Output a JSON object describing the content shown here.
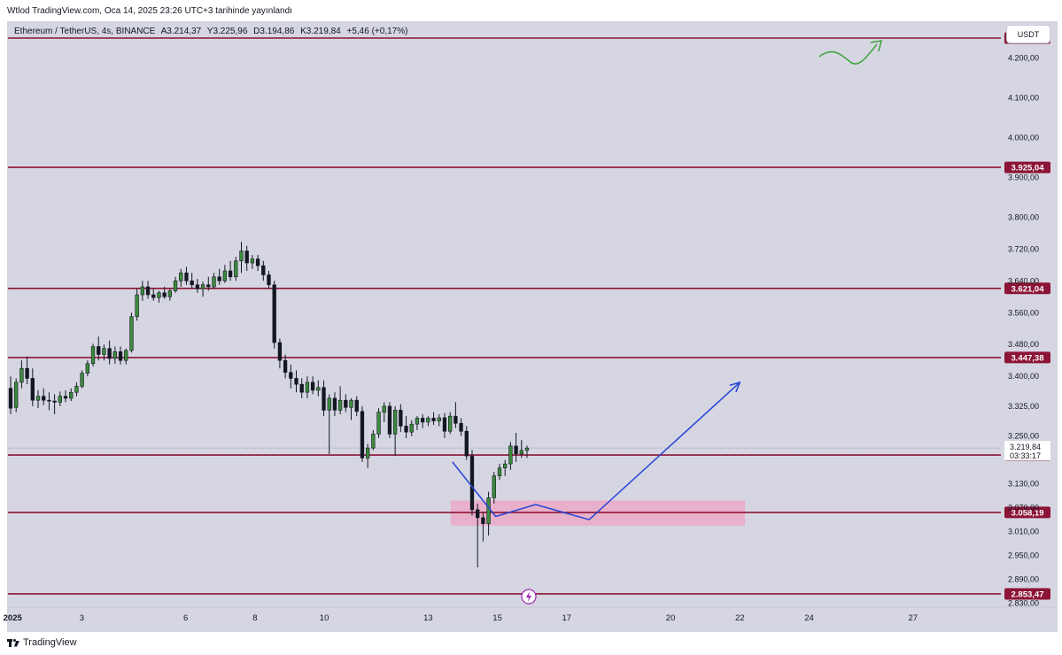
{
  "header": {
    "published": "Wtlod TradingView.com, Oca 14, 2025 23:26 UTC+3 tarihinde yayınlandı"
  },
  "legend": {
    "symbol": "Ethereum / TetherUS, 4s, BINANCE",
    "open": "A3.214,37",
    "high": "Y3.225,96",
    "low": "D3.194,86",
    "close": "K3.219,84",
    "change": "+5,46 (+0,17%)"
  },
  "currency_button": "USDT",
  "footer": {
    "brand": "TradingView"
  },
  "colors": {
    "background": "#d6d6e2",
    "level_line": "#8c1436",
    "level_badge": "#8c1436",
    "up_candle": "#3c8c3c",
    "down_candle": "#131722",
    "projection": "#2845d6",
    "zone": "#f0a0c0",
    "squiggle": "#3aa13a",
    "alert": "#9c27b0"
  },
  "icons": {
    "alert": "lightning-icon",
    "brand": "tradingview-logo-icon"
  },
  "chart_data": {
    "type": "candlestick",
    "title": "Ethereum / TetherUS, 4s, BINANCE",
    "x_tick_labels": [
      "2025",
      "3",
      "6",
      "8",
      "10",
      "13",
      "15",
      "17",
      "20",
      "22",
      "24",
      "27"
    ],
    "x_tick_days": [
      1,
      3,
      6,
      8,
      10,
      13,
      15,
      17,
      20,
      22,
      24,
      27
    ],
    "ylim": [
      2820,
      4290
    ],
    "y_tick_labels": [
      "4.200,00",
      "4.100,00",
      "4.000,00",
      "3.900,00",
      "3.800,00",
      "3.720,00",
      "3.640,00",
      "3.560,00",
      "3.480,00",
      "3.400,00",
      "3.325,00",
      "3.250,00",
      "3.130,00",
      "3.070,00",
      "3.010,00",
      "2.950,00",
      "2.890,00",
      "2.830,00"
    ],
    "y_ticks": [
      4200,
      4100,
      4000,
      3900,
      3800,
      3720,
      3640,
      3560,
      3480,
      3400,
      3325,
      3250,
      3130,
      3070,
      3010,
      2950,
      2890,
      2830
    ],
    "horizontal_levels": [
      {
        "value": 4249.96,
        "label": "4.249,96"
      },
      {
        "value": 3925.04,
        "label": "3.925,04"
      },
      {
        "value": 3621.04,
        "label": "3.621,04"
      },
      {
        "value": 3447.38,
        "label": "3.447,38"
      },
      {
        "value": 3202.28,
        "label": "3.202,28"
      },
      {
        "value": 3058.19,
        "label": "3.058,19"
      },
      {
        "value": 2853.47,
        "label": "2.853,47"
      }
    ],
    "last_price": {
      "value": 3219.84,
      "label": "3.219,84",
      "countdown": "03:33:17"
    },
    "zone": {
      "x_start": 13.65,
      "x_end": 22.15,
      "y_low": 3025,
      "y_high": 3088
    },
    "projection_path": [
      {
        "x": 13.7,
        "y": 3185
      },
      {
        "x": 14.95,
        "y": 3048
      },
      {
        "x": 16.1,
        "y": 3078
      },
      {
        "x": 17.65,
        "y": 3040
      },
      {
        "x": 22.0,
        "y": 3385
      }
    ],
    "candles": [
      {
        "o": 3370,
        "h": 3400,
        "l": 3305,
        "c": 3320
      },
      {
        "o": 3322,
        "h": 3395,
        "l": 3310,
        "c": 3385
      },
      {
        "o": 3385,
        "h": 3440,
        "l": 3370,
        "c": 3420
      },
      {
        "o": 3420,
        "h": 3450,
        "l": 3380,
        "c": 3395
      },
      {
        "o": 3395,
        "h": 3420,
        "l": 3325,
        "c": 3340
      },
      {
        "o": 3340,
        "h": 3365,
        "l": 3320,
        "c": 3350
      },
      {
        "o": 3350,
        "h": 3370,
        "l": 3328,
        "c": 3340
      },
      {
        "o": 3340,
        "h": 3360,
        "l": 3315,
        "c": 3338
      },
      {
        "o": 3338,
        "h": 3355,
        "l": 3305,
        "c": 3335
      },
      {
        "o": 3335,
        "h": 3362,
        "l": 3325,
        "c": 3350
      },
      {
        "o": 3350,
        "h": 3365,
        "l": 3335,
        "c": 3345
      },
      {
        "o": 3345,
        "h": 3370,
        "l": 3338,
        "c": 3360
      },
      {
        "o": 3360,
        "h": 3385,
        "l": 3350,
        "c": 3375
      },
      {
        "o": 3375,
        "h": 3415,
        "l": 3370,
        "c": 3408
      },
      {
        "o": 3408,
        "h": 3440,
        "l": 3400,
        "c": 3432
      },
      {
        "o": 3432,
        "h": 3482,
        "l": 3425,
        "c": 3475
      },
      {
        "o": 3475,
        "h": 3500,
        "l": 3440,
        "c": 3455
      },
      {
        "o": 3455,
        "h": 3480,
        "l": 3440,
        "c": 3470
      },
      {
        "o": 3470,
        "h": 3490,
        "l": 3430,
        "c": 3445
      },
      {
        "o": 3445,
        "h": 3475,
        "l": 3432,
        "c": 3462
      },
      {
        "o": 3462,
        "h": 3475,
        "l": 3430,
        "c": 3440
      },
      {
        "o": 3440,
        "h": 3470,
        "l": 3430,
        "c": 3465
      },
      {
        "o": 3465,
        "h": 3560,
        "l": 3460,
        "c": 3550
      },
      {
        "o": 3550,
        "h": 3620,
        "l": 3540,
        "c": 3605
      },
      {
        "o": 3605,
        "h": 3640,
        "l": 3590,
        "c": 3625
      },
      {
        "o": 3625,
        "h": 3640,
        "l": 3595,
        "c": 3605
      },
      {
        "o": 3605,
        "h": 3620,
        "l": 3590,
        "c": 3598
      },
      {
        "o": 3598,
        "h": 3615,
        "l": 3585,
        "c": 3610
      },
      {
        "o": 3610,
        "h": 3625,
        "l": 3595,
        "c": 3600
      },
      {
        "o": 3600,
        "h": 3620,
        "l": 3590,
        "c": 3615
      },
      {
        "o": 3615,
        "h": 3650,
        "l": 3610,
        "c": 3640
      },
      {
        "o": 3640,
        "h": 3670,
        "l": 3625,
        "c": 3660
      },
      {
        "o": 3660,
        "h": 3675,
        "l": 3630,
        "c": 3640
      },
      {
        "o": 3640,
        "h": 3660,
        "l": 3620,
        "c": 3630
      },
      {
        "o": 3630,
        "h": 3645,
        "l": 3610,
        "c": 3620
      },
      {
        "o": 3620,
        "h": 3638,
        "l": 3600,
        "c": 3630
      },
      {
        "o": 3630,
        "h": 3650,
        "l": 3615,
        "c": 3625
      },
      {
        "o": 3625,
        "h": 3660,
        "l": 3620,
        "c": 3650
      },
      {
        "o": 3650,
        "h": 3670,
        "l": 3630,
        "c": 3640
      },
      {
        "o": 3640,
        "h": 3680,
        "l": 3635,
        "c": 3665
      },
      {
        "o": 3665,
        "h": 3690,
        "l": 3640,
        "c": 3650
      },
      {
        "o": 3650,
        "h": 3700,
        "l": 3640,
        "c": 3690
      },
      {
        "o": 3690,
        "h": 3738,
        "l": 3660,
        "c": 3715
      },
      {
        "o": 3715,
        "h": 3728,
        "l": 3665,
        "c": 3685
      },
      {
        "o": 3685,
        "h": 3705,
        "l": 3670,
        "c": 3695
      },
      {
        "o": 3695,
        "h": 3705,
        "l": 3665,
        "c": 3678
      },
      {
        "o": 3678,
        "h": 3690,
        "l": 3640,
        "c": 3655
      },
      {
        "o": 3655,
        "h": 3665,
        "l": 3620,
        "c": 3630
      },
      {
        "o": 3630,
        "h": 3640,
        "l": 3470,
        "c": 3485
      },
      {
        "o": 3485,
        "h": 3495,
        "l": 3420,
        "c": 3440
      },
      {
        "o": 3440,
        "h": 3455,
        "l": 3395,
        "c": 3410
      },
      {
        "o": 3410,
        "h": 3430,
        "l": 3370,
        "c": 3395
      },
      {
        "o": 3395,
        "h": 3415,
        "l": 3360,
        "c": 3380
      },
      {
        "o": 3380,
        "h": 3395,
        "l": 3345,
        "c": 3360
      },
      {
        "o": 3360,
        "h": 3400,
        "l": 3345,
        "c": 3385
      },
      {
        "o": 3385,
        "h": 3400,
        "l": 3355,
        "c": 3365
      },
      {
        "o": 3365,
        "h": 3390,
        "l": 3350,
        "c": 3372
      },
      {
        "o": 3372,
        "h": 3390,
        "l": 3300,
        "c": 3315
      },
      {
        "o": 3315,
        "h": 3355,
        "l": 3205,
        "c": 3345
      },
      {
        "o": 3345,
        "h": 3360,
        "l": 3300,
        "c": 3315
      },
      {
        "o": 3315,
        "h": 3375,
        "l": 3305,
        "c": 3340
      },
      {
        "o": 3340,
        "h": 3355,
        "l": 3310,
        "c": 3322
      },
      {
        "o": 3322,
        "h": 3345,
        "l": 3290,
        "c": 3340
      },
      {
        "o": 3340,
        "h": 3350,
        "l": 3300,
        "c": 3312
      },
      {
        "o": 3312,
        "h": 3325,
        "l": 3185,
        "c": 3195
      },
      {
        "o": 3195,
        "h": 3230,
        "l": 3170,
        "c": 3220
      },
      {
        "o": 3220,
        "h": 3265,
        "l": 3215,
        "c": 3255
      },
      {
        "o": 3255,
        "h": 3320,
        "l": 3245,
        "c": 3310
      },
      {
        "o": 3310,
        "h": 3335,
        "l": 3285,
        "c": 3325
      },
      {
        "o": 3325,
        "h": 3335,
        "l": 3245,
        "c": 3255
      },
      {
        "o": 3255,
        "h": 3325,
        "l": 3200,
        "c": 3315
      },
      {
        "o": 3315,
        "h": 3330,
        "l": 3260,
        "c": 3275
      },
      {
        "o": 3275,
        "h": 3300,
        "l": 3245,
        "c": 3260
      },
      {
        "o": 3260,
        "h": 3290,
        "l": 3250,
        "c": 3280
      },
      {
        "o": 3280,
        "h": 3300,
        "l": 3265,
        "c": 3295
      },
      {
        "o": 3295,
        "h": 3305,
        "l": 3270,
        "c": 3285
      },
      {
        "o": 3285,
        "h": 3300,
        "l": 3275,
        "c": 3295
      },
      {
        "o": 3295,
        "h": 3310,
        "l": 3278,
        "c": 3288
      },
      {
        "o": 3288,
        "h": 3305,
        "l": 3275,
        "c": 3296
      },
      {
        "o": 3296,
        "h": 3308,
        "l": 3245,
        "c": 3262
      },
      {
        "o": 3262,
        "h": 3310,
        "l": 3255,
        "c": 3300
      },
      {
        "o": 3300,
        "h": 3335,
        "l": 3270,
        "c": 3282
      },
      {
        "o": 3282,
        "h": 3295,
        "l": 3250,
        "c": 3262
      },
      {
        "o": 3262,
        "h": 3275,
        "l": 3190,
        "c": 3200
      },
      {
        "o": 3200,
        "h": 3215,
        "l": 3050,
        "c": 3065
      },
      {
        "o": 3065,
        "h": 3080,
        "l": 2920,
        "c": 3045
      },
      {
        "o": 3045,
        "h": 3060,
        "l": 2985,
        "c": 3030
      },
      {
        "o": 3030,
        "h": 3110,
        "l": 3000,
        "c": 3095
      },
      {
        "o": 3095,
        "h": 3160,
        "l": 3080,
        "c": 3150
      },
      {
        "o": 3150,
        "h": 3180,
        "l": 3140,
        "c": 3170
      },
      {
        "o": 3170,
        "h": 3190,
        "l": 3150,
        "c": 3180
      },
      {
        "o": 3180,
        "h": 3235,
        "l": 3165,
        "c": 3225
      },
      {
        "o": 3225,
        "h": 3258,
        "l": 3185,
        "c": 3205
      },
      {
        "o": 3205,
        "h": 3240,
        "l": 3195,
        "c": 3214
      },
      {
        "o": 3214,
        "h": 3226,
        "l": 3195,
        "c": 3220
      }
    ]
  }
}
